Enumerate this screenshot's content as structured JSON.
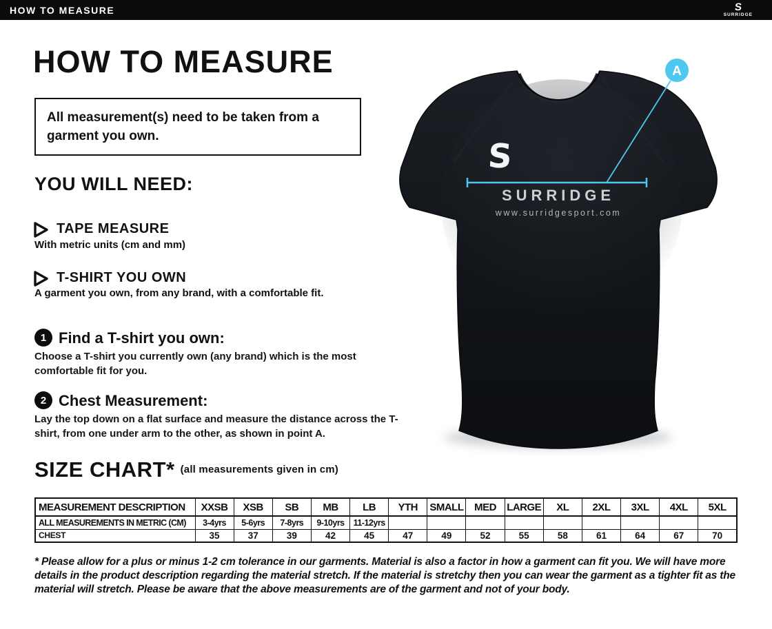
{
  "topbar": {
    "title": "HOW TO MEASURE",
    "logo_glyph": "S",
    "logo_text": "SURRIDGE"
  },
  "page": {
    "title": "HOW TO MEASURE",
    "notice": "All measurement(s) need to be taken from a garment you own.",
    "you_will_need": {
      "heading": "YOU WILL NEED:",
      "items": [
        {
          "title": "TAPE MEASURE",
          "desc": "With metric units (cm and mm)"
        },
        {
          "title": "T-SHIRT YOU OWN",
          "desc": "A garment you own, from any brand, with a comfortable fit."
        }
      ]
    },
    "steps": [
      {
        "num": "1",
        "title": "Find a T-shirt you own:",
        "desc": "Choose a T-shirt you currently own (any brand) which is the most comfortable fit for you."
      },
      {
        "num": "2",
        "title": "Chest Measurement:",
        "desc": "Lay the top down on a flat surface and measure the distance across the T-shirt, from one under arm to the other, as shown in point A."
      }
    ],
    "size_chart": {
      "heading": "SIZE CHART*",
      "subheading": "(all measurements given in cm)"
    },
    "footnote": "* Please allow for a plus or minus 1-2 cm tolerance in our garments. Material is also a factor in how a garment can fit you. We will have more details in the product description regarding the material stretch.  If the material is stretchy then you can wear the garment as a tighter fit as the material will stretch.  Please be aware that the above measurements are of the garment and not of your body."
  },
  "chart_data": {
    "type": "table",
    "title": "SIZE CHART (all measurements given in cm)",
    "columns": [
      "MEASUREMENT DESCRIPTION",
      "XXSB",
      "XSB",
      "SB",
      "MB",
      "LB",
      "YTH",
      "SMALL",
      "MED",
      "LARGE",
      "XL",
      "2XL",
      "3XL",
      "4XL",
      "5XL"
    ],
    "rows": [
      [
        "ALL MEASUREMENTS IN METRIC (CM)",
        "3-4yrs",
        "5-6yrs",
        "7-8yrs",
        "9-10yrs",
        "11-12yrs",
        "",
        "",
        "",
        "",
        "",
        "",
        "",
        "",
        ""
      ],
      [
        "CHEST",
        "35",
        "37",
        "39",
        "42",
        "45",
        "47",
        "49",
        "52",
        "55",
        "58",
        "61",
        "64",
        "67",
        "70"
      ]
    ]
  },
  "shirt": {
    "logo_letter": "S",
    "brand": "SURRIDGE",
    "website": "www.surridgesport.com",
    "marker_label": "A",
    "accent_color": "#4ec8ee",
    "shirt_color": "#14171b"
  }
}
